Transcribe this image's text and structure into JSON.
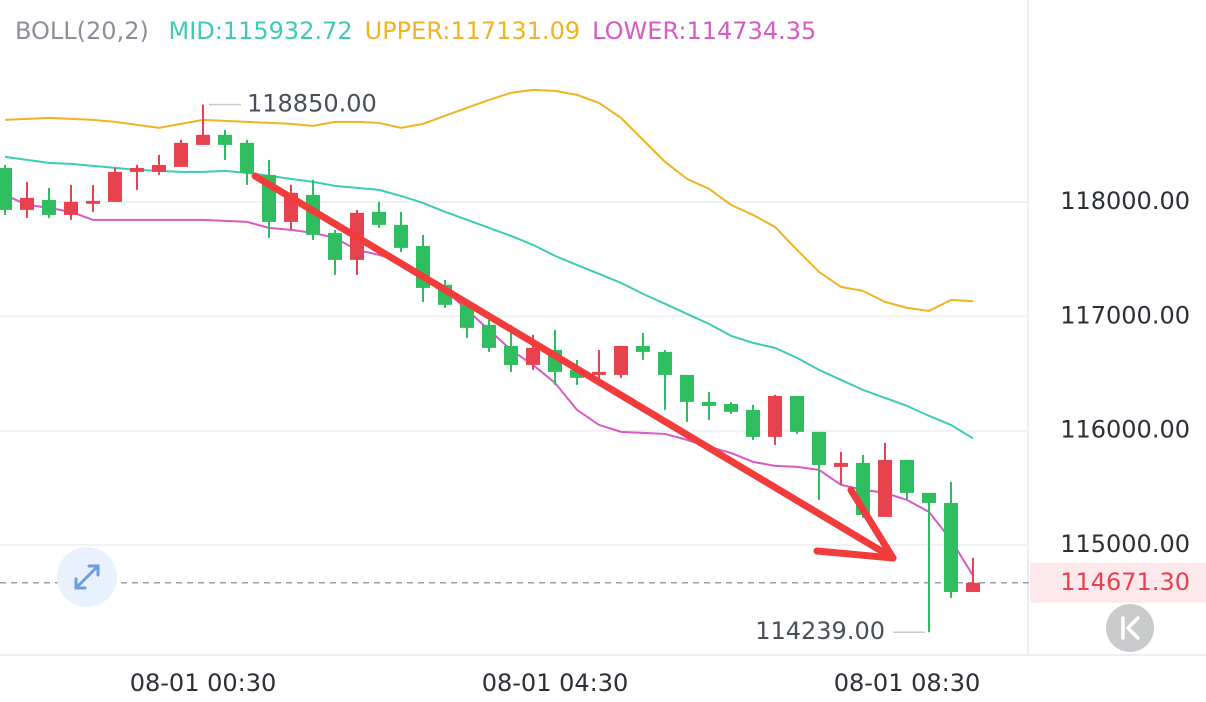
{
  "chart_data": {
    "type": "candlestick",
    "indicator": "BOLL(20,2)",
    "categories": [
      null,
      null,
      null,
      null,
      null,
      null,
      null,
      null,
      null,
      "08-01 00:30",
      null,
      null,
      null,
      null,
      null,
      null,
      null,
      null,
      null,
      null,
      null,
      null,
      null,
      null,
      null,
      "08-01 04:30",
      null,
      null,
      null,
      null,
      null,
      null,
      null,
      null,
      null,
      null,
      null,
      null,
      null,
      null,
      null,
      "08-01 08:30",
      null,
      null,
      null
    ],
    "open": [
      118297,
      117930,
      118017,
      117886,
      117983,
      118000,
      118262,
      118262,
      118306,
      118498,
      118586,
      118516,
      118236,
      117825,
      118061,
      117729,
      117493,
      117913,
      117799,
      117615,
      117275,
      117100,
      116925,
      116741,
      116575,
      116706,
      116532,
      116488,
      116488,
      116741,
      116689,
      116488,
      116252,
      116234,
      116182,
      115946,
      116304,
      115990,
      115684,
      115719,
      115247,
      115745,
      115457,
      115369,
      114591
    ],
    "high": [
      118323,
      118175,
      118122,
      118149,
      118149,
      118297,
      118323,
      118411,
      118542,
      118850,
      118629,
      118542,
      118367,
      118149,
      118192,
      117755,
      117930,
      118000,
      117913,
      117712,
      117318,
      117143,
      116969,
      116925,
      116838,
      116881,
      116619,
      116706,
      116741,
      116855,
      116706,
      116488,
      116339,
      116252,
      116226,
      116313,
      116304,
      115990,
      115815,
      115789,
      115894,
      115745,
      115457,
      115553,
      114889
    ],
    "low": [
      117886,
      117860,
      117860,
      117843,
      117913,
      118000,
      118105,
      118236,
      118306,
      118498,
      118367,
      118149,
      117685,
      117755,
      117668,
      117362,
      117362,
      117773,
      117563,
      117126,
      117074,
      116811,
      116689,
      116514,
      116532,
      116401,
      116401,
      116444,
      116462,
      116619,
      116182,
      116077,
      116095,
      116147,
      115920,
      115876,
      115972,
      115395,
      115527,
      115238,
      115247,
      115395,
      114239,
      114539,
      114591
    ],
    "close": [
      117930,
      118035,
      117886,
      118000,
      118009,
      118262,
      118297,
      118323,
      118516,
      118586,
      118498,
      118253,
      117825,
      118079,
      117712,
      117493,
      117904,
      117799,
      117598,
      117248,
      117100,
      116899,
      116724,
      116575,
      116724,
      116514,
      116462,
      116514,
      116741,
      116689,
      116488,
      116252,
      116217,
      116165,
      115946,
      116304,
      115990,
      115701,
      115719,
      115264,
      115745,
      115457,
      115369,
      114591,
      114671.3
    ],
    "up_color": "#e8424f",
    "down_color": "#2ebd5f",
    "series": [
      {
        "name": "MID:",
        "color": "#3ecbb6",
        "values": [
          118393,
          118367,
          118341,
          118332,
          118315,
          118297,
          118280,
          118271,
          118262,
          118262,
          118271,
          118253,
          118227,
          118201,
          118175,
          118140,
          118122,
          118105,
          118052,
          117991,
          117913,
          117843,
          117773,
          117703,
          117624,
          117528,
          117449,
          117371,
          117292,
          117196,
          117109,
          117021,
          116934,
          116829,
          116768,
          116724,
          116637,
          116532,
          116444,
          116357,
          116287,
          116217,
          116130,
          116051,
          115932.72
        ]
      },
      {
        "name": "UPPER:",
        "color": "#f0b323",
        "values": [
          118717,
          118725,
          118734,
          118725,
          118717,
          118699,
          118673,
          118647,
          118682,
          118717,
          118708,
          118699,
          118690,
          118682,
          118664,
          118699,
          118699,
          118690,
          118647,
          118682,
          118752,
          118822,
          118891,
          118953,
          118979,
          118970,
          118935,
          118865,
          118734,
          118542,
          118350,
          118201,
          118114,
          117974,
          117886,
          117781,
          117580,
          117388,
          117257,
          117222,
          117126,
          117074,
          117047,
          117143,
          117131.09
        ]
      },
      {
        "name": "LOWER:",
        "color": "#d85ac4",
        "values": [
          118061,
          117974,
          117948,
          117913,
          117843,
          117843,
          117843,
          117843,
          117843,
          117843,
          117834,
          117825,
          117773,
          117755,
          117729,
          117685,
          117580,
          117537,
          117476,
          117362,
          117231,
          117056,
          116881,
          116706,
          116575,
          116418,
          116182,
          116051,
          115990,
          115981,
          115972,
          115920,
          115859,
          115806,
          115728,
          115693,
          115684,
          115658,
          115527,
          115484,
          115457,
          115395,
          115291,
          115046,
          114734.35
        ]
      }
    ],
    "ylim": [
      114040,
      119240
    ],
    "yticks": [
      {
        "value": 115000,
        "label": "115000.00"
      },
      {
        "value": 116000,
        "label": "116000.00"
      },
      {
        "value": 117000,
        "label": "117000.00"
      },
      {
        "value": 118000,
        "label": "118000.00"
      }
    ],
    "grid": true,
    "high_marker": {
      "value": 118850,
      "label": "118850.00"
    },
    "low_marker": {
      "value": 114239,
      "label": "114239.00"
    },
    "last_price": {
      "value": 114671.3,
      "label": "114671.30"
    }
  }
}
